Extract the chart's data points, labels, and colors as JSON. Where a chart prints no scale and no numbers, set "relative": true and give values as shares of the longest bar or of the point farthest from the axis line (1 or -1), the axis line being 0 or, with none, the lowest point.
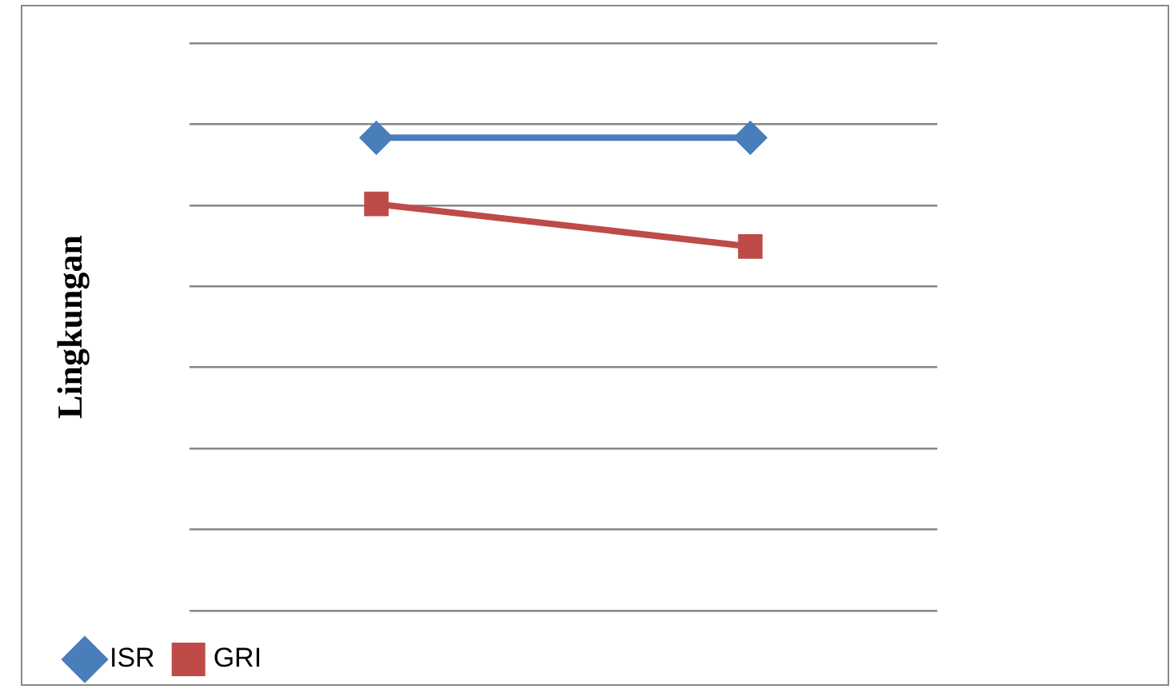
{
  "chart_data": {
    "type": "line",
    "ylabel": "Lingkungan",
    "categories": [
      null,
      null
    ],
    "relative": true,
    "grid": "y",
    "legend": "bottom left",
    "line_style": "solid",
    "series": [
      {
        "name": "ISR",
        "color": "#4a7ebb",
        "values": [
          1,
          1
        ],
        "marker": "diamond"
      },
      {
        "name": "GRI",
        "color": "#be4b48",
        "values": [
          0.86,
          0.77
        ],
        "marker": "square"
      }
    ]
  }
}
